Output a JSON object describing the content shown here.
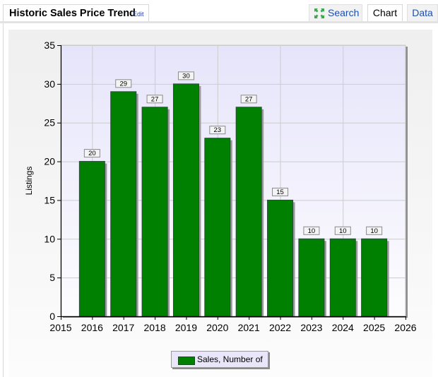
{
  "header": {
    "title": "Historic Sales Price Trend",
    "edit_label": "Edit",
    "tabs": [
      {
        "label": "Search",
        "icon": "expand-arrows-icon",
        "active": false
      },
      {
        "label": "Chart",
        "active": true
      },
      {
        "label": "Data",
        "active": false
      }
    ]
  },
  "colors": {
    "bar": "#008000",
    "plot_bg": "#e6e4fa",
    "link": "#1a4fb0"
  },
  "chart_data": {
    "type": "bar",
    "title": "",
    "xlabel": "",
    "ylabel": "Listings",
    "categories": [
      "2016",
      "2017",
      "2018",
      "2019",
      "2020",
      "2021",
      "2022",
      "2023",
      "2024",
      "2025"
    ],
    "series": [
      {
        "name": "Sales, Number of",
        "values": [
          20,
          29,
          27,
          30,
          23,
          27,
          15,
          10,
          10,
          10
        ]
      }
    ],
    "x_ticks": [
      "2015",
      "2016",
      "2017",
      "2018",
      "2019",
      "2020",
      "2021",
      "2022",
      "2023",
      "2024",
      "2025",
      "2026"
    ],
    "xlim": [
      2015,
      2026
    ],
    "y_ticks": [
      0,
      5,
      10,
      15,
      20,
      25,
      30,
      35
    ],
    "ylim": [
      0,
      35
    ],
    "data_labels": true,
    "grid": true,
    "legend_position": "bottom"
  },
  "legend": {
    "label": "Sales, Number of"
  }
}
